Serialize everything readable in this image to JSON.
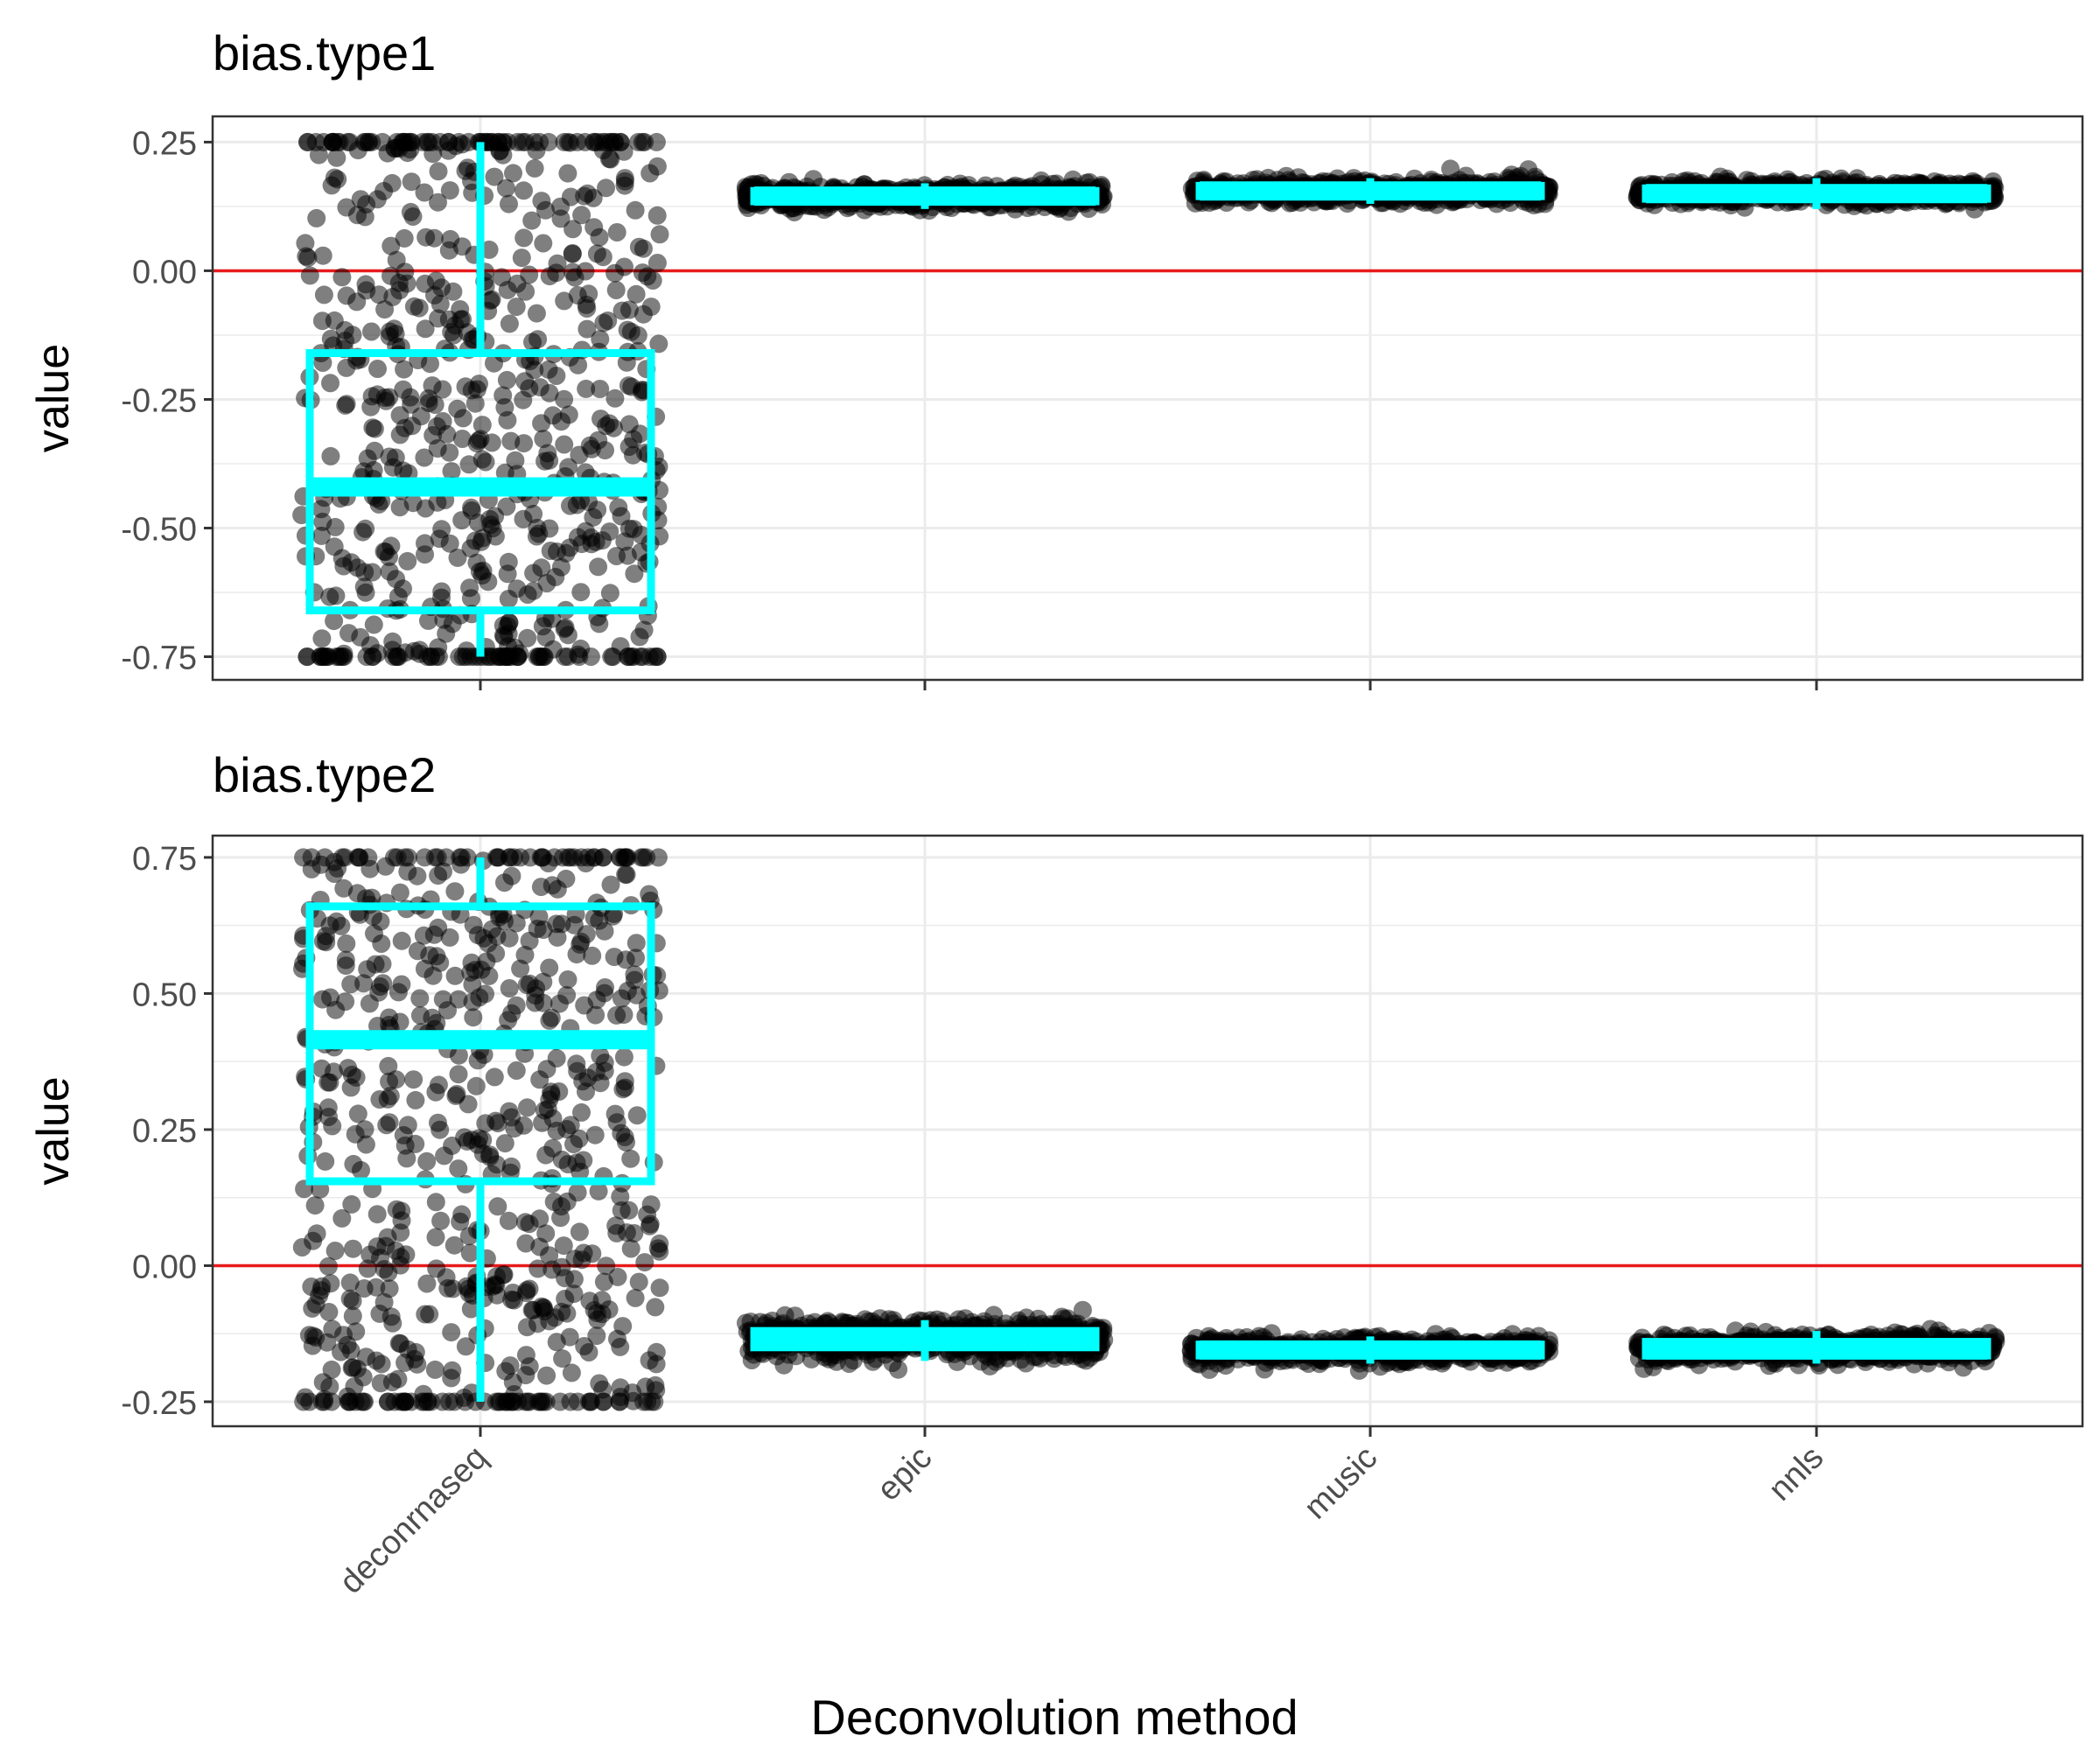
{
  "figure": {
    "xlabel": "Deconvolution method",
    "ylabel": "value"
  },
  "colors": {
    "box": "#00ffff",
    "points": "#000000",
    "reference_line": "#e8191b",
    "grid": "#ebebeb",
    "panel_border": "#333333",
    "text": "#4d4d4d"
  },
  "chart_data": [
    {
      "type": "box",
      "title": "bias.type1",
      "xlabel": "",
      "ylabel": "value",
      "categories": [
        "deconrnaseq",
        "epic",
        "music",
        "nnls"
      ],
      "ylim": [
        -0.795,
        0.3
      ],
      "yticks": [
        0.25,
        0.0,
        -0.25,
        -0.5,
        -0.75
      ],
      "ytick_labels": [
        "0.25",
        "0.00",
        "-0.25",
        "-0.50",
        "-0.75"
      ],
      "reference_line_y": 0,
      "grid": true,
      "boxes": [
        {
          "category": "deconrnaseq",
          "min": -0.75,
          "q1": -0.66,
          "median": -0.42,
          "q3": -0.16,
          "max": 0.25
        },
        {
          "category": "epic",
          "min": 0.12,
          "q1": 0.135,
          "median": 0.145,
          "q3": 0.155,
          "max": 0.17
        },
        {
          "category": "music",
          "min": 0.13,
          "q1": 0.145,
          "median": 0.155,
          "q3": 0.165,
          "max": 0.18
        },
        {
          "category": "nnls",
          "min": 0.12,
          "q1": 0.14,
          "median": 0.15,
          "q3": 0.16,
          "max": 0.18
        }
      ],
      "jitter_points": [
        {
          "category": "deconrnaseq",
          "n": 700,
          "distribution": "uniform",
          "range": [
            -0.75,
            0.25
          ]
        },
        {
          "category": "epic",
          "n": 700,
          "distribution": "normal",
          "mean": 0.145,
          "sd": 0.011
        },
        {
          "category": "music",
          "n": 700,
          "distribution": "normal",
          "mean": 0.155,
          "sd": 0.011
        },
        {
          "category": "nnls",
          "n": 700,
          "distribution": "normal",
          "mean": 0.152,
          "sd": 0.011
        }
      ]
    },
    {
      "type": "box",
      "title": "bias.type2",
      "xlabel": "Deconvolution method",
      "ylabel": "value",
      "categories": [
        "deconrnaseq",
        "epic",
        "music",
        "nnls"
      ],
      "ylim": [
        -0.295,
        0.79
      ],
      "yticks": [
        0.75,
        0.5,
        0.25,
        0.0,
        -0.25
      ],
      "ytick_labels": [
        "0.75",
        "0.50",
        "0.25",
        "0.00",
        "-0.25"
      ],
      "reference_line_y": 0,
      "grid": true,
      "boxes": [
        {
          "category": "deconrnaseq",
          "min": -0.25,
          "q1": 0.155,
          "median": 0.415,
          "q3": 0.66,
          "max": 0.75
        },
        {
          "category": "epic",
          "min": -0.175,
          "q1": -0.15,
          "median": -0.135,
          "q3": -0.12,
          "max": -0.1
        },
        {
          "category": "music",
          "min": -0.18,
          "q1": -0.165,
          "median": -0.155,
          "q3": -0.145,
          "max": -0.13
        },
        {
          "category": "nnls",
          "min": -0.18,
          "q1": -0.165,
          "median": -0.155,
          "q3": -0.14,
          "max": -0.12
        }
      ],
      "jitter_points": [
        {
          "category": "deconrnaseq",
          "n": 700,
          "distribution": "uniform",
          "range": [
            -0.25,
            0.75
          ]
        },
        {
          "category": "epic",
          "n": 700,
          "distribution": "normal",
          "mean": -0.135,
          "sd": 0.018
        },
        {
          "category": "music",
          "n": 700,
          "distribution": "normal",
          "mean": -0.155,
          "sd": 0.011
        },
        {
          "category": "nnls",
          "n": 700,
          "distribution": "normal",
          "mean": -0.152,
          "sd": 0.012
        }
      ]
    }
  ]
}
